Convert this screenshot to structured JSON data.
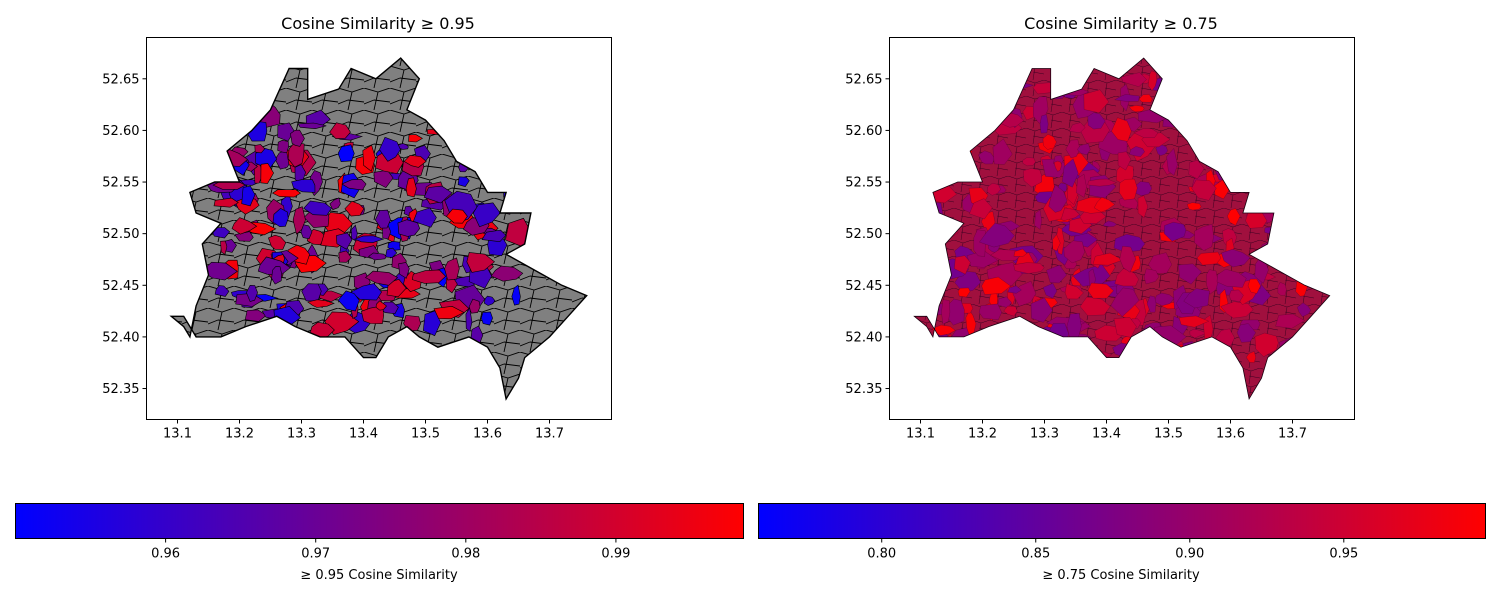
{
  "colors": {
    "low": "#0000ff",
    "mid": "#800080",
    "high": "#ff0000",
    "below_threshold_fill": "#808080",
    "boundary": "#000000"
  },
  "chart_data": [
    {
      "type": "choropleth",
      "title": "Cosine Similarity ≥ 0.95",
      "xlim": [
        13.05,
        13.8
      ],
      "ylim": [
        52.32,
        52.69
      ],
      "x_ticks": [
        "13.1",
        "13.2",
        "13.3",
        "13.4",
        "13.5",
        "13.6",
        "13.7"
      ],
      "y_ticks": [
        "52.35",
        "52.40",
        "52.45",
        "52.50",
        "52.55",
        "52.60",
        "52.65"
      ],
      "colorbar": {
        "label": "≥ 0.95 Cosine Similarity",
        "range": [
          0.95,
          0.9985
        ],
        "ticks": [
          "0.96",
          "0.97",
          "0.98",
          "0.99"
        ],
        "colors": [
          "#0000ff",
          "#800080",
          "#ff0000"
        ]
      },
      "unmatched_fill": "#808080",
      "boundary_color": "#000000"
    },
    {
      "type": "choropleth",
      "title": "Cosine Similarity ≥ 0.75",
      "xlim": [
        13.05,
        13.8
      ],
      "ylim": [
        52.32,
        52.69
      ],
      "x_ticks": [
        "13.1",
        "13.2",
        "13.3",
        "13.4",
        "13.5",
        "13.6",
        "13.7"
      ],
      "y_ticks": [
        "52.35",
        "52.40",
        "52.45",
        "52.50",
        "52.55",
        "52.60",
        "52.65"
      ],
      "colorbar": {
        "label": "≥ 0.75 Cosine Similarity",
        "range": [
          0.76,
          0.996
        ],
        "ticks": [
          "0.80",
          "0.85",
          "0.90",
          "0.95"
        ],
        "colors": [
          "#0000ff",
          "#800080",
          "#ff0000"
        ]
      },
      "unmatched_fill": "#800080",
      "boundary_color": "#333333"
    }
  ]
}
